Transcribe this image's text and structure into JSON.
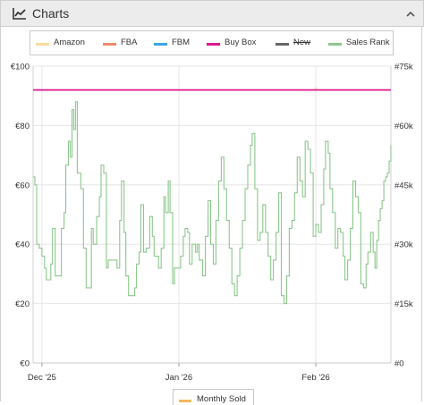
{
  "header": {
    "title": "Charts",
    "title_icon": "line-chart-icon",
    "collapse_icon": "chevron-up-icon"
  },
  "legend": [
    {
      "label": "Amazon",
      "color": "#f7d9a0",
      "enabled": true
    },
    {
      "label": "FBA",
      "color": "#f08a70",
      "enabled": true
    },
    {
      "label": "FBM",
      "color": "#3aa6e0",
      "enabled": true
    },
    {
      "label": "Buy Box",
      "color": "#e0168c",
      "enabled": true
    },
    {
      "label": "New",
      "color": "#666666",
      "enabled": false
    },
    {
      "label": "Sales Rank",
      "color": "#8cc78c",
      "enabled": true
    }
  ],
  "bottom_legend": {
    "label": "Monthly Sold",
    "color": "#f0b860"
  },
  "chart_data": {
    "type": "line",
    "y_left": {
      "ticks": [
        "€0",
        "€20",
        "€40",
        "€60",
        "€80",
        "€100"
      ],
      "range": [
        0,
        100
      ]
    },
    "y_right": {
      "ticks": [
        "#0",
        "#15k",
        "#30k",
        "#45k",
        "#60k",
        "#75k"
      ],
      "range": [
        0,
        75000
      ]
    },
    "x_ticks": [
      {
        "label": "Dec '25",
        "t": 2.0
      },
      {
        "label": "Jan '26",
        "t": 33.0
      },
      {
        "label": "Feb '26",
        "t": 64.0
      }
    ],
    "x_range": [
      0,
      81
    ],
    "grid": true,
    "series": [
      {
        "name": "Buy Box",
        "axis": "left",
        "color": "#e0168c",
        "points": [
          [
            0,
            92
          ],
          [
            81,
            92
          ]
        ]
      },
      {
        "name": "Amazon",
        "axis": "left",
        "color": "#f7d9a0",
        "points": [
          [
            63.6,
            92.6
          ],
          [
            64.3,
            92.6
          ]
        ]
      },
      {
        "name": "Sales Rank",
        "axis": "right",
        "color": "#8cc78c",
        "points": [
          [
            0,
            47000
          ],
          [
            0.4,
            45000
          ],
          [
            0.8,
            30000
          ],
          [
            1.4,
            29000
          ],
          [
            2.0,
            27000
          ],
          [
            2.6,
            24000
          ],
          [
            3.0,
            21000
          ],
          [
            3.6,
            21000
          ],
          [
            4.0,
            25000
          ],
          [
            4.4,
            34000
          ],
          [
            5.0,
            22000
          ],
          [
            6.0,
            22000
          ],
          [
            6.4,
            34000
          ],
          [
            7.0,
            38000
          ],
          [
            7.4,
            50000
          ],
          [
            8.0,
            56000
          ],
          [
            8.4,
            52000
          ],
          [
            8.8,
            64000
          ],
          [
            9.2,
            59000
          ],
          [
            9.6,
            66000
          ],
          [
            10.0,
            48000
          ],
          [
            10.8,
            44000
          ],
          [
            11.4,
            29000
          ],
          [
            12.0,
            19000
          ],
          [
            12.8,
            19000
          ],
          [
            13.2,
            34000
          ],
          [
            13.6,
            30000
          ],
          [
            14.4,
            37000
          ],
          [
            15.0,
            42000
          ],
          [
            15.4,
            50000
          ],
          [
            16.0,
            48000
          ],
          [
            16.6,
            24000
          ],
          [
            17.0,
            26000
          ],
          [
            18.4,
            26000
          ],
          [
            19.0,
            24000
          ],
          [
            19.6,
            36000
          ],
          [
            20.0,
            46000
          ],
          [
            20.6,
            33000
          ],
          [
            21.0,
            22000
          ],
          [
            21.6,
            17000
          ],
          [
            22.4,
            17000
          ],
          [
            23.0,
            19000
          ],
          [
            23.4,
            25000
          ],
          [
            24.0,
            28000
          ],
          [
            24.4,
            40000
          ],
          [
            25.0,
            28000
          ],
          [
            25.6,
            29000
          ],
          [
            26.4,
            37000
          ],
          [
            27.0,
            32000
          ],
          [
            27.4,
            27000
          ],
          [
            28.0,
            27000
          ],
          [
            28.4,
            24000
          ],
          [
            29.0,
            29000
          ],
          [
            29.6,
            42000
          ],
          [
            30.0,
            38000
          ],
          [
            30.6,
            46000
          ],
          [
            31.0,
            38000
          ],
          [
            31.6,
            20000
          ],
          [
            32.0,
            24000
          ],
          [
            32.8,
            24000
          ],
          [
            33.4,
            27000
          ],
          [
            34.0,
            32000
          ],
          [
            34.4,
            34000
          ],
          [
            35.0,
            33000
          ],
          [
            35.4,
            25000
          ],
          [
            36.0,
            30000
          ],
          [
            36.8,
            28000
          ],
          [
            37.2,
            30000
          ],
          [
            37.6,
            26000
          ],
          [
            38.4,
            22000
          ],
          [
            39.0,
            32000
          ],
          [
            39.6,
            41000
          ],
          [
            40.2,
            30000
          ],
          [
            40.8,
            25000
          ],
          [
            41.4,
            36000
          ],
          [
            42.0,
            46000
          ],
          [
            42.6,
            52000
          ],
          [
            43.2,
            44000
          ],
          [
            43.8,
            36000
          ],
          [
            44.4,
            29000
          ],
          [
            45.0,
            20000
          ],
          [
            45.6,
            17000
          ],
          [
            46.2,
            22000
          ],
          [
            46.8,
            29000
          ],
          [
            47.4,
            36000
          ],
          [
            48.0,
            44000
          ],
          [
            48.6,
            50000
          ],
          [
            49.2,
            55000
          ],
          [
            49.6,
            58000
          ],
          [
            50.2,
            44000
          ],
          [
            50.8,
            31000
          ],
          [
            51.4,
            33000
          ],
          [
            52.0,
            40000
          ],
          [
            52.6,
            33000
          ],
          [
            53.2,
            27000
          ],
          [
            53.8,
            21000
          ],
          [
            54.4,
            26000
          ],
          [
            55.0,
            33000
          ],
          [
            55.6,
            43000
          ],
          [
            56.2,
            17000
          ],
          [
            56.8,
            15000
          ],
          [
            57.4,
            22000
          ],
          [
            58.0,
            34000
          ],
          [
            58.6,
            36000
          ],
          [
            59.2,
            43000
          ],
          [
            59.8,
            52000
          ],
          [
            60.4,
            46000
          ],
          [
            61.0,
            42000
          ],
          [
            61.6,
            56000
          ],
          [
            62.2,
            54000
          ],
          [
            62.8,
            48000
          ],
          [
            63.4,
            32000
          ],
          [
            64.0,
            35000
          ],
          [
            64.6,
            33000
          ],
          [
            65.2,
            40000
          ],
          [
            65.8,
            49000
          ],
          [
            66.2,
            56000
          ],
          [
            66.8,
            53000
          ],
          [
            67.2,
            44000
          ],
          [
            67.8,
            38000
          ],
          [
            68.4,
            29000
          ],
          [
            69.0,
            34000
          ],
          [
            69.6,
            33000
          ],
          [
            70.2,
            27000
          ],
          [
            70.6,
            21000
          ],
          [
            71.2,
            26000
          ],
          [
            71.8,
            34000
          ],
          [
            72.4,
            46000
          ],
          [
            73.0,
            42000
          ],
          [
            73.6,
            38000
          ],
          [
            74.2,
            20000
          ],
          [
            74.8,
            19000
          ],
          [
            75.4,
            25000
          ],
          [
            75.8,
            28000
          ],
          [
            76.4,
            33000
          ],
          [
            77.0,
            28000
          ],
          [
            77.4,
            24000
          ],
          [
            77.8,
            31000
          ],
          [
            78.2,
            36000
          ],
          [
            78.6,
            39000
          ],
          [
            79.0,
            41000
          ],
          [
            79.4,
            46000
          ],
          [
            79.8,
            47000
          ],
          [
            80.2,
            48000
          ],
          [
            80.6,
            51000
          ],
          [
            81.0,
            55000
          ]
        ]
      }
    ]
  }
}
